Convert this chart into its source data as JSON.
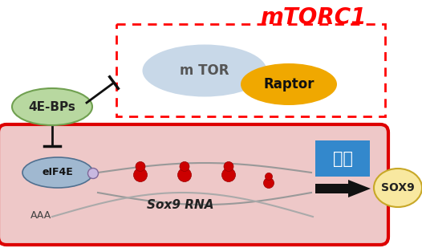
{
  "bg_color": "#ffffff",
  "title": "mTORC1",
  "title_color": "#ff0000",
  "title_fontsize": 20,
  "mtor_label": "m TOR",
  "raptor_label": "Raptor",
  "ebps_label": "4E-BPs",
  "eif4e_label": "eIF4E",
  "sox9rna_label": "Sox9 RNA",
  "aaa_label": "AAA",
  "translation_label": "翻訳",
  "sox9_label": "SOX9",
  "mtor_color": "#c8d8e8",
  "raptor_color": "#f0a800",
  "ebps_color": "#b8d8a0",
  "eif4e_color": "#a0b8d0",
  "cell_fill": "#eec8c8",
  "cell_edge": "#dd0000",
  "ribosome_color": "#cc0000",
  "translation_box_color": "#3388cc",
  "sox9_circle_color": "#f8e8a0",
  "arrow_color": "#111111",
  "inhibit_line_color": "#111111",
  "dashed_box_color": "#ff0000",
  "cap_color": "#c8b8e0"
}
